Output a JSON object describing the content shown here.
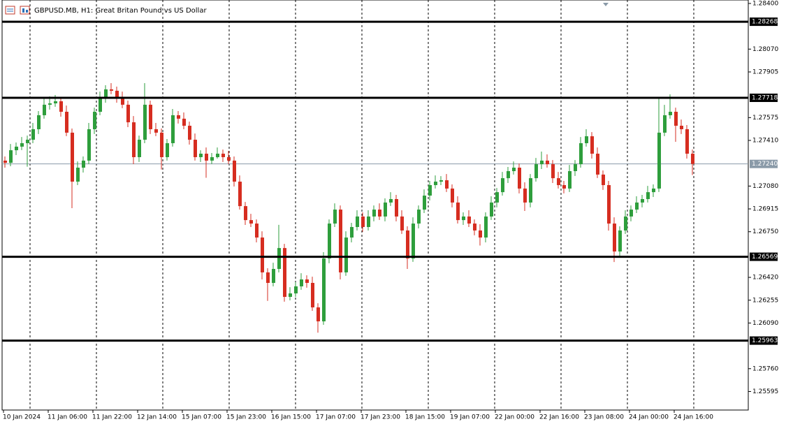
{
  "chart_data": {
    "type": "candlestick",
    "title": "GBPUSD.MB, H1:  Great Britan Pound vs US Dollar",
    "up_color": "#2e9e3c",
    "down_color": "#d62d20",
    "level_color": "#000000",
    "price_line_color": "#8a9aa8",
    "ylim": [
      1.25461,
      1.28425
    ],
    "yticks": [
      {
        "value": 1.284,
        "label": "1.28400"
      },
      {
        "value": 1.2807,
        "label": "1.28070"
      },
      1.27905,
      1.27575,
      {
        "value": 1.2741,
        "label": "1.27410"
      },
      {
        "value": 1.2708,
        "label": "1.27080"
      },
      1.26915,
      {
        "value": 1.2675,
        "label": "1.26750"
      },
      {
        "value": 1.2642,
        "label": "1.26420"
      },
      1.26255,
      {
        "value": 1.2609,
        "label": "1.26090"
      },
      {
        "value": 1.2576,
        "label": "1.25760"
      },
      1.25595
    ],
    "levels": [
      1.28268,
      1.27718,
      1.26569,
      1.25963
    ],
    "current_price": {
      "value": 1.2724,
      "label": "1.27240"
    },
    "x_labels": [
      "10 Jan 2024",
      "11 Jan 06:00",
      "11 Jan 22:00",
      "12 Jan 14:00",
      "15 Jan 07:00",
      "15 Jan 23:00",
      "16 Jan 15:00",
      "17 Jan 07:00",
      "17 Jan 23:00",
      "18 Jan 15:00",
      "19 Jan 07:00",
      "22 Jan 00:00",
      "22 Jan 16:00",
      "23 Jan 08:00",
      "24 Jan 00:00",
      "24 Jan 16:00"
    ],
    "open": [
      1.27264,
      1.27248,
      1.27339,
      1.27365,
      1.2739,
      1.27415,
      1.27491,
      1.27592,
      1.27668,
      1.27678,
      1.27693,
      1.27617,
      1.27466,
      1.27112,
      1.27213,
      1.27264,
      1.27491,
      1.27617,
      1.27718,
      1.27779,
      1.27769,
      1.27718,
      1.27668,
      1.27541,
      1.27289,
      1.27415,
      1.27668,
      1.27491,
      1.27466,
      1.27289,
      1.2739,
      1.27592,
      1.27567,
      1.27516,
      1.27415,
      1.27289,
      1.27314,
      1.27264,
      1.27289,
      1.27314,
      1.27289,
      1.27264,
      1.27112,
      1.26935,
      1.26834,
      1.26809,
      1.26708,
      1.26456,
      1.2638,
      1.26481,
      1.26632,
      1.26279,
      1.26304,
      1.26355,
      1.26405,
      1.2638,
      1.26203,
      1.26102,
      1.26557,
      1.26809,
      1.2691,
      1.26456,
      1.26708,
      1.26784,
      1.2686,
      1.26784,
      1.2686,
      1.2691,
      1.2686,
      1.26961,
      1.26986,
      1.2686,
      1.26759,
      1.26557,
      1.26809,
      1.2691,
      1.27011,
      1.27087,
      1.27112,
      1.27122,
      1.27062,
      1.26961,
      1.26834,
      1.2686,
      1.26809,
      1.26759,
      1.26708,
      1.2686,
      1.26961,
      1.27036,
      1.27137,
      1.27188,
      1.27213,
      1.27062,
      1.26961,
      1.27137,
      1.27238,
      1.27264,
      1.27238,
      1.27137,
      1.27087,
      1.27062,
      1.27188,
      1.27238,
      1.2739,
      1.2744,
      1.27314,
      1.27163,
      1.27087,
      1.26809,
      1.26607,
      1.26759,
      1.2686,
      1.2691,
      1.26961,
      1.26986,
      1.27036,
      1.27062,
      1.27466,
      1.27592,
      1.27617,
      1.27516,
      1.27491,
      1.27314
    ],
    "high": [
      1.27294,
      1.27384,
      1.27395,
      1.27435,
      1.27445,
      1.27536,
      1.27622,
      1.27713,
      1.27728,
      1.27738,
      1.27723,
      1.27662,
      1.27496,
      1.27258,
      1.27294,
      1.27536,
      1.27647,
      1.27763,
      1.27809,
      1.27824,
      1.27799,
      1.27763,
      1.27698,
      1.27586,
      1.27445,
      1.27824,
      1.27698,
      1.27536,
      1.27496,
      1.2742,
      1.27637,
      1.27622,
      1.27612,
      1.27546,
      1.2746,
      1.27339,
      1.27359,
      1.27319,
      1.27359,
      1.27344,
      1.27334,
      1.27294,
      1.27157,
      1.26965,
      1.26879,
      1.26839,
      1.26753,
      1.26486,
      1.26526,
      1.268,
      1.26662,
      1.26349,
      1.26385,
      1.2645,
      1.26435,
      1.26425,
      1.26233,
      1.26602,
      1.26839,
      1.26955,
      1.2694,
      1.26753,
      1.26814,
      1.26905,
      1.2689,
      1.26905,
      1.2694,
      1.26955,
      1.26991,
      1.27036,
      1.27016,
      1.26905,
      1.26789,
      1.26854,
      1.2694,
      1.27056,
      1.27117,
      1.27157,
      1.27152,
      1.27167,
      1.27092,
      1.27006,
      1.2689,
      1.26905,
      1.26839,
      1.26804,
      1.2689,
      1.27006,
      1.27066,
      1.27182,
      1.27218,
      1.27258,
      1.27243,
      1.27107,
      1.27167,
      1.27283,
      1.27329,
      1.27309,
      1.27268,
      1.27182,
      1.27117,
      1.27233,
      1.27268,
      1.27435,
      1.27491,
      1.2747,
      1.27359,
      1.27193,
      1.27117,
      1.26854,
      1.26789,
      1.26905,
      1.2694,
      1.27006,
      1.27016,
      1.27081,
      1.27092,
      1.27718,
      1.27667,
      1.27743,
      1.27647,
      1.27561,
      1.27521,
      1.27344
    ],
    "low": [
      1.27213,
      1.27223,
      1.27304,
      1.2734,
      1.2722,
      1.2739,
      1.27456,
      1.27567,
      1.27633,
      1.27653,
      1.27582,
      1.27441,
      1.2692,
      1.27087,
      1.27178,
      1.27239,
      1.27456,
      1.27592,
      1.27683,
      1.27744,
      1.27683,
      1.27643,
      1.27506,
      1.27239,
      1.27254,
      1.2739,
      1.27456,
      1.27441,
      1.272,
      1.27264,
      1.27365,
      1.27532,
      1.27491,
      1.2738,
      1.27264,
      1.27254,
      1.2714,
      1.27239,
      1.27279,
      1.27254,
      1.27239,
      1.27077,
      1.2691,
      1.26799,
      1.26784,
      1.26673,
      1.26405,
      1.2625,
      1.26355,
      1.26456,
      1.26244,
      1.26254,
      1.26279,
      1.2633,
      1.26345,
      1.26178,
      1.2602,
      1.26077,
      1.26522,
      1.26784,
      1.26405,
      1.26431,
      1.26673,
      1.26759,
      1.26749,
      1.26759,
      1.26825,
      1.26835,
      1.26825,
      1.26936,
      1.26825,
      1.26734,
      1.26481,
      1.26532,
      1.26774,
      1.26885,
      1.26976,
      1.27062,
      1.27087,
      1.27037,
      1.26926,
      1.26809,
      1.26799,
      1.26784,
      1.26724,
      1.2665,
      1.26673,
      1.26835,
      1.26926,
      1.27011,
      1.27102,
      1.27163,
      1.27027,
      1.269,
      1.26926,
      1.27112,
      1.27203,
      1.27213,
      1.27102,
      1.27062,
      1.27027,
      1.27037,
      1.27153,
      1.27213,
      1.27365,
      1.27279,
      1.27138,
      1.27052,
      1.26758,
      1.26531,
      1.26572,
      1.26734,
      1.26825,
      1.26885,
      1.26926,
      1.26961,
      1.27001,
      1.27037,
      1.27441,
      1.27567,
      1.274,
      1.27456,
      1.27279,
      1.2716
    ],
    "close": [
      1.27248,
      1.27339,
      1.27365,
      1.2739,
      1.27415,
      1.27491,
      1.27592,
      1.27668,
      1.27678,
      1.27693,
      1.27617,
      1.27466,
      1.27112,
      1.27213,
      1.27264,
      1.27491,
      1.27617,
      1.27718,
      1.27779,
      1.27769,
      1.27718,
      1.27668,
      1.27541,
      1.27289,
      1.27415,
      1.27668,
      1.27491,
      1.27466,
      1.27289,
      1.2739,
      1.27592,
      1.27567,
      1.27516,
      1.27415,
      1.27289,
      1.27314,
      1.27264,
      1.27289,
      1.27314,
      1.27289,
      1.27264,
      1.27112,
      1.26935,
      1.26834,
      1.26809,
      1.26708,
      1.26456,
      1.2638,
      1.26481,
      1.26632,
      1.26279,
      1.26304,
      1.26355,
      1.26405,
      1.2638,
      1.26203,
      1.26102,
      1.26557,
      1.26809,
      1.2691,
      1.26456,
      1.26708,
      1.26784,
      1.2686,
      1.26784,
      1.2686,
      1.2691,
      1.2686,
      1.26961,
      1.26986,
      1.2686,
      1.26759,
      1.26557,
      1.26809,
      1.2691,
      1.27011,
      1.27087,
      1.27112,
      1.27122,
      1.27062,
      1.26961,
      1.26834,
      1.2686,
      1.26809,
      1.26759,
      1.26708,
      1.2686,
      1.26961,
      1.27036,
      1.27137,
      1.27188,
      1.27213,
      1.27062,
      1.26961,
      1.27137,
      1.27238,
      1.27264,
      1.27238,
      1.27137,
      1.27087,
      1.27062,
      1.27188,
      1.27238,
      1.2739,
      1.2744,
      1.27314,
      1.27163,
      1.27087,
      1.26809,
      1.26607,
      1.26759,
      1.2686,
      1.2691,
      1.26961,
      1.26986,
      1.27036,
      1.27062,
      1.27466,
      1.27592,
      1.27617,
      1.27516,
      1.27491,
      1.27314,
      1.2724
    ]
  }
}
